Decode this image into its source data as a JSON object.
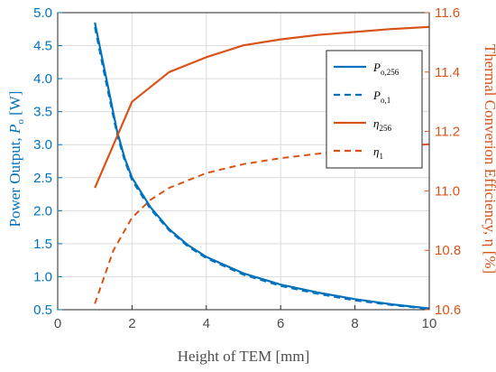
{
  "chart_data": {
    "type": "line",
    "xlabel": "Height of TEM [mm]",
    "ylabel_left": "Power Output, P_o [W]",
    "ylabel_left_main": "Power Output, ",
    "ylabel_left_sym": "P",
    "ylabel_left_sub": "o",
    "ylabel_left_unit": " [W]",
    "ylabel_right": "Thermal Converion Efficiency, η [%]",
    "xlim": [
      0,
      10
    ],
    "ylim_left": [
      0.5,
      5.0
    ],
    "ylim_right": [
      10.6,
      11.6
    ],
    "x_ticks": [
      "0",
      "2",
      "4",
      "6",
      "8",
      "10"
    ],
    "y_left_ticks": [
      "0.5",
      "1.0",
      "1.5",
      "2.0",
      "2.5",
      "3.0",
      "3.5",
      "4.0",
      "4.5",
      "5.0"
    ],
    "y_right_ticks": [
      "10.6",
      "10.8",
      "11.0",
      "11.2",
      "11.4",
      "11.6"
    ],
    "grid": true,
    "legend_position": "top-right",
    "series": [
      {
        "name": "P_o,256",
        "label_sym": "P",
        "label_sub": "o,256",
        "axis": "left",
        "style": "solid",
        "color": "#0072BD",
        "x": [
          1,
          1.2,
          1.4,
          1.6,
          1.8,
          2,
          2.5,
          3,
          3.5,
          4,
          5,
          6,
          7,
          8,
          9,
          10
        ],
        "y": [
          4.85,
          4.3,
          3.75,
          3.2,
          2.8,
          2.5,
          2.05,
          1.72,
          1.48,
          1.3,
          1.05,
          0.88,
          0.76,
          0.66,
          0.58,
          0.52
        ]
      },
      {
        "name": "P_o,1",
        "label_sym": "P",
        "label_sub": "o,1",
        "axis": "left",
        "style": "dashed",
        "color": "#0072BD",
        "x": [
          1,
          1.2,
          1.4,
          1.6,
          1.8,
          2,
          2.5,
          3,
          3.5,
          4,
          5,
          6,
          7,
          8,
          9,
          10
        ],
        "y": [
          4.78,
          4.22,
          3.68,
          3.15,
          2.76,
          2.46,
          2.02,
          1.7,
          1.46,
          1.28,
          1.03,
          0.86,
          0.74,
          0.64,
          0.57,
          0.51
        ]
      },
      {
        "name": "η_256",
        "label_sym": "η",
        "label_sub": "256",
        "axis": "right",
        "style": "solid",
        "color": "#D95319",
        "x": [
          1,
          2,
          3,
          4,
          5,
          6,
          7,
          8,
          9,
          10
        ],
        "y": [
          11.01,
          11.3,
          11.4,
          11.45,
          11.49,
          11.51,
          11.525,
          11.535,
          11.545,
          11.552
        ]
      },
      {
        "name": "η_1",
        "label_sym": "η",
        "label_sub": "1",
        "axis": "right",
        "style": "dashed",
        "color": "#D95319",
        "x": [
          1,
          1.5,
          2,
          2.5,
          3,
          4,
          5,
          6,
          7,
          8,
          9,
          10
        ],
        "y": [
          10.62,
          10.8,
          10.91,
          10.97,
          11.01,
          11.06,
          11.09,
          11.11,
          11.125,
          11.135,
          11.148,
          11.157
        ]
      }
    ]
  }
}
